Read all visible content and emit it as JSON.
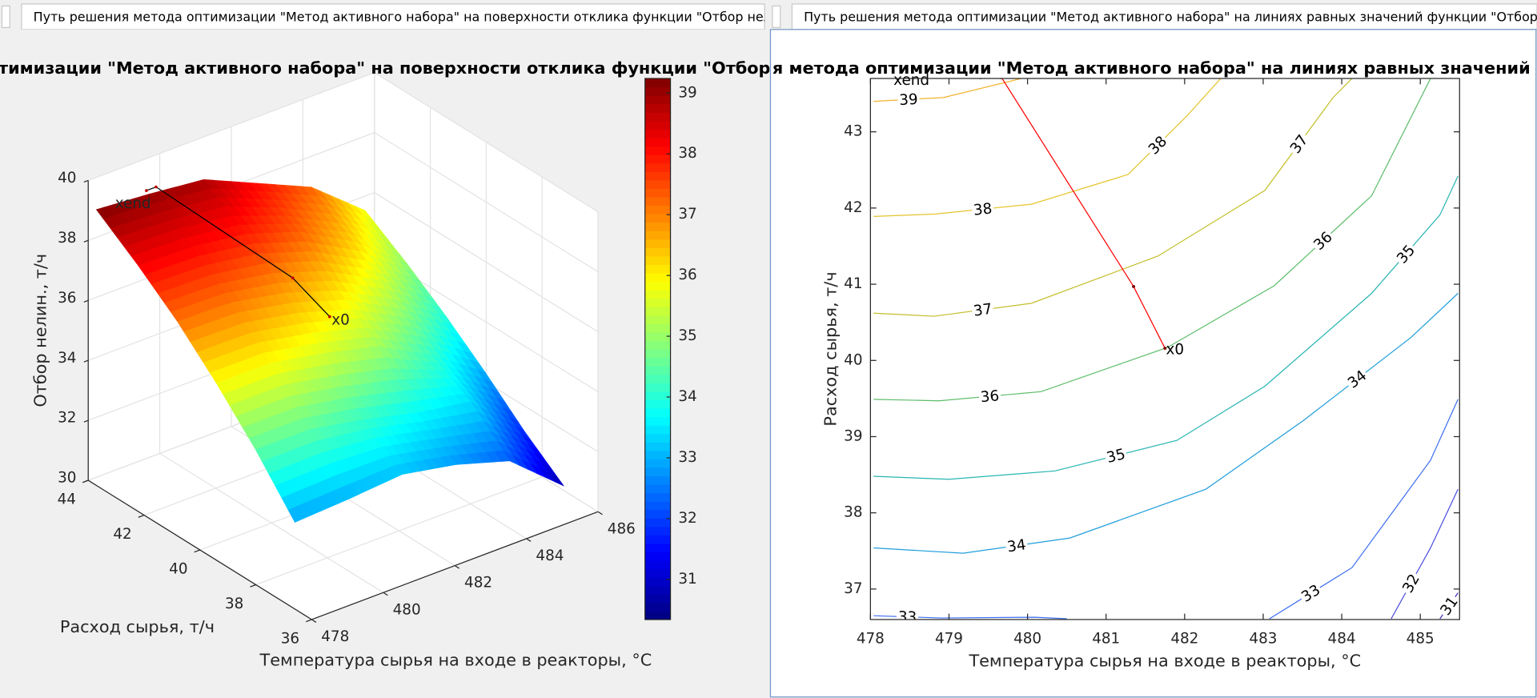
{
  "tabs": [
    "Путь решения метода оптимизации \"Метод активного набора\" на поверхности отклика функции \"Отбор нелин",
    "Путь решения метода оптимизации \"Метод активного набора\" на линиях равных значений функции \"Отбор нел"
  ],
  "chart_data": [
    {
      "type": "surface",
      "title": "тода оптимизации \"Метод активного набора\" на поверхности отклика функции \"Отбор",
      "x_label": "Температура сырья на входе в реакторы, °C",
      "y_label": "Расход сырья, т/ч",
      "z_label": "Отбор нелин., т/ч",
      "x": [
        478,
        479.5,
        481,
        482.5,
        484,
        485.5
      ],
      "y": [
        36.6,
        38,
        39.4,
        40.8,
        42.2,
        43.7
      ],
      "z": [
        [
          32.9,
          33.0,
          33.15,
          32.8,
          32.25,
          30.75
        ],
        [
          34.5,
          34.5,
          34.15,
          33.7,
          33.4,
          31.75
        ],
        [
          35.9,
          35.9,
          35.55,
          35.1,
          34.15,
          32.9
        ],
        [
          37.15,
          37.1,
          36.75,
          36.15,
          35.2,
          33.95
        ],
        [
          38.2,
          38.15,
          37.9,
          37.3,
          36.3,
          34.9
        ],
        [
          39.2,
          39.05,
          38.85,
          38.05,
          37.25,
          35.8
        ]
      ],
      "xlim": [
        478,
        486
      ],
      "xticks": [
        478,
        480,
        482,
        484,
        486
      ],
      "ylim": [
        36,
        44
      ],
      "yticks": [
        36,
        38,
        40,
        42,
        44
      ],
      "zlim": [
        30,
        40
      ],
      "zticks": [
        30,
        32,
        34,
        36,
        38,
        40
      ],
      "colormap": "jet",
      "clim": [
        30.34,
        39.24
      ],
      "cticks": [
        31,
        32,
        33,
        34,
        35,
        36,
        37,
        38,
        39
      ],
      "grid": true,
      "path": {
        "x": [
          481.75,
          481.35,
          479.67,
          479.4
        ],
        "y": [
          40.16,
          40.97,
          43.71,
          43.71
        ],
        "z": [
          36.0,
          37.0,
          39.2,
          39.2
        ],
        "color": "#000000"
      },
      "start_label": "x0",
      "end_label": "xend"
    },
    {
      "type": "contour",
      "title": "я метода оптимизации \"Метод активного набора\" на линиях равных значений функци",
      "x_label": "Температура сырья на входе в реакторы, °C",
      "y_label": "Расход сырья, т/ч",
      "xlim": [
        478,
        485.5
      ],
      "xticks": [
        478,
        479,
        480,
        481,
        482,
        483,
        484,
        485
      ],
      "ylim": [
        36.6,
        43.7
      ],
      "yticks": [
        37,
        38,
        39,
        40,
        41,
        42,
        43
      ],
      "contours": [
        {
          "level": 39,
          "color": "#f2b22e",
          "x": [
            478.04,
            478.93,
            479.92
          ],
          "y": [
            43.4,
            43.45,
            43.7
          ]
        },
        {
          "level": 38,
          "color": "#e6c52f",
          "x": [
            478.04,
            478.81,
            480.05,
            481.28,
            482.03,
            482.46
          ],
          "y": [
            41.89,
            41.92,
            42.05,
            42.44,
            43.21,
            43.7
          ]
        },
        {
          "level": 37,
          "color": "#c4bf2c",
          "x": [
            478.04,
            478.81,
            480.05,
            481.66,
            483.02,
            483.89,
            484.13
          ],
          "y": [
            40.62,
            40.58,
            40.75,
            41.37,
            42.23,
            43.45,
            43.7
          ]
        },
        {
          "level": 36,
          "color": "#5cbd6a",
          "x": [
            478.04,
            478.87,
            480.17,
            481.78,
            483.14,
            484.38,
            485.13
          ],
          "y": [
            39.49,
            39.47,
            39.59,
            40.17,
            40.98,
            42.16,
            43.7
          ]
        },
        {
          "level": 35,
          "color": "#27b5b1",
          "x": [
            478.04,
            479.0,
            480.35,
            481.9,
            483.02,
            484.38,
            485.25,
            485.48
          ],
          "y": [
            38.48,
            38.44,
            38.55,
            38.95,
            39.66,
            40.88,
            41.91,
            42.42
          ]
        },
        {
          "level": 34,
          "color": "#1f9edb",
          "x": [
            478.04,
            479.18,
            480.54,
            482.27,
            483.51,
            484.88,
            485.48
          ],
          "y": [
            37.54,
            37.47,
            37.67,
            38.31,
            39.21,
            40.3,
            40.88
          ]
        },
        {
          "level": 33,
          "color": "#3d6ef0",
          "x": [
            478.04,
            478.9,
            480.1,
            480.5,
            null,
            483.08,
            484.13,
            485.13,
            485.48
          ],
          "y": [
            36.65,
            36.62,
            36.63,
            36.61,
            null,
            36.61,
            37.28,
            38.69,
            39.49
          ]
        },
        {
          "level": 32,
          "color": "#4a4ee0",
          "x": [
            484.63,
            485.13,
            485.48
          ],
          "y": [
            36.61,
            37.54,
            38.31
          ]
        },
        {
          "level": 31,
          "color": "#4030c8",
          "x": [
            485.25,
            485.48
          ],
          "y": [
            36.61,
            36.95
          ]
        }
      ],
      "path": {
        "x": [
          481.75,
          481.35,
          479.67,
          479.4
        ],
        "y": [
          40.16,
          40.97,
          43.71,
          43.71
        ],
        "color": "#ff0000"
      },
      "start_label": "x0",
      "end_label": "xend"
    }
  ]
}
